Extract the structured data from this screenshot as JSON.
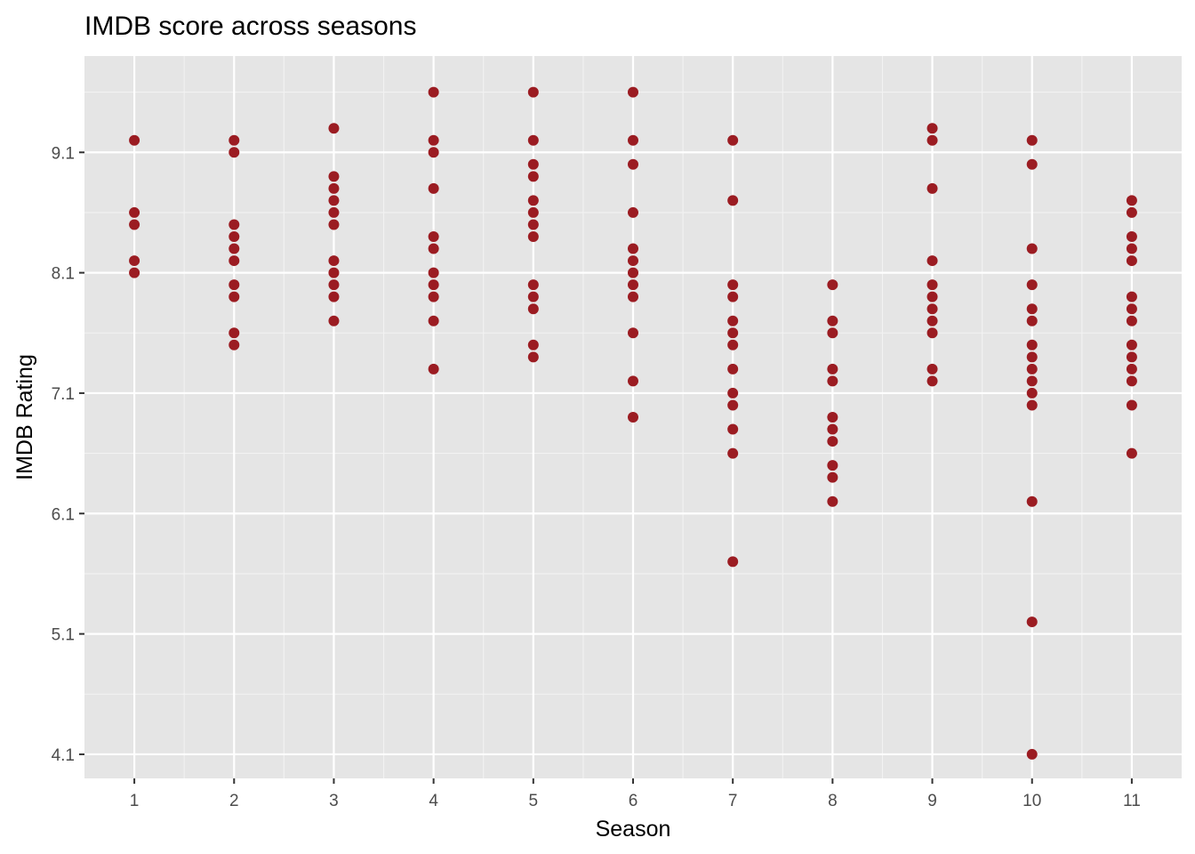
{
  "chart_data": {
    "type": "scatter",
    "title": "IMDB score across seasons",
    "xlabel": "Season",
    "ylabel": "IMDB Rating",
    "x_ticks": [
      1,
      2,
      3,
      4,
      5,
      6,
      7,
      8,
      9,
      10,
      11
    ],
    "y_ticks": [
      4.1,
      5.1,
      6.1,
      7.1,
      8.1,
      9.1
    ],
    "xlim": [
      0.5,
      11.5
    ],
    "ylim": [
      3.9,
      9.9
    ],
    "grid": true,
    "legend": "none",
    "point_color": "#9B1C22",
    "panel_background": "#E5E5E5",
    "points": [
      {
        "season": 1,
        "ratings": [
          9.2,
          8.6,
          8.5,
          8.2,
          8.1
        ]
      },
      {
        "season": 2,
        "ratings": [
          9.2,
          9.1,
          8.5,
          8.4,
          8.3,
          8.2,
          8.0,
          7.9,
          7.6,
          7.5
        ]
      },
      {
        "season": 3,
        "ratings": [
          9.3,
          8.9,
          8.8,
          8.7,
          8.6,
          8.5,
          8.2,
          8.1,
          8.0,
          7.9,
          7.7
        ]
      },
      {
        "season": 4,
        "ratings": [
          9.6,
          9.2,
          9.1,
          8.8,
          8.4,
          8.3,
          8.1,
          8.0,
          7.9,
          7.7,
          7.3
        ]
      },
      {
        "season": 5,
        "ratings": [
          9.6,
          9.2,
          9.0,
          8.9,
          8.7,
          8.6,
          8.5,
          8.4,
          8.0,
          7.9,
          7.8,
          7.5,
          7.4
        ]
      },
      {
        "season": 6,
        "ratings": [
          9.6,
          9.2,
          9.0,
          8.6,
          8.3,
          8.2,
          8.1,
          8.0,
          7.9,
          7.6,
          7.2,
          6.9
        ]
      },
      {
        "season": 7,
        "ratings": [
          9.2,
          8.7,
          8.0,
          7.9,
          7.7,
          7.6,
          7.5,
          7.3,
          7.1,
          7.0,
          6.8,
          6.6,
          5.7
        ]
      },
      {
        "season": 8,
        "ratings": [
          8.0,
          7.7,
          7.6,
          7.3,
          7.2,
          6.9,
          6.8,
          6.7,
          6.5,
          6.4,
          6.2
        ]
      },
      {
        "season": 9,
        "ratings": [
          9.3,
          9.2,
          8.8,
          8.2,
          8.0,
          7.9,
          7.8,
          7.7,
          7.6,
          7.3,
          7.2
        ]
      },
      {
        "season": 10,
        "ratings": [
          9.2,
          9.0,
          8.3,
          8.0,
          7.8,
          7.7,
          7.5,
          7.4,
          7.3,
          7.2,
          7.1,
          7.0,
          6.2,
          5.2,
          4.1
        ]
      },
      {
        "season": 11,
        "ratings": [
          8.7,
          8.6,
          8.4,
          8.3,
          8.2,
          7.9,
          7.8,
          7.7,
          7.5,
          7.4,
          7.3,
          7.2,
          7.0,
          6.6
        ]
      }
    ]
  }
}
